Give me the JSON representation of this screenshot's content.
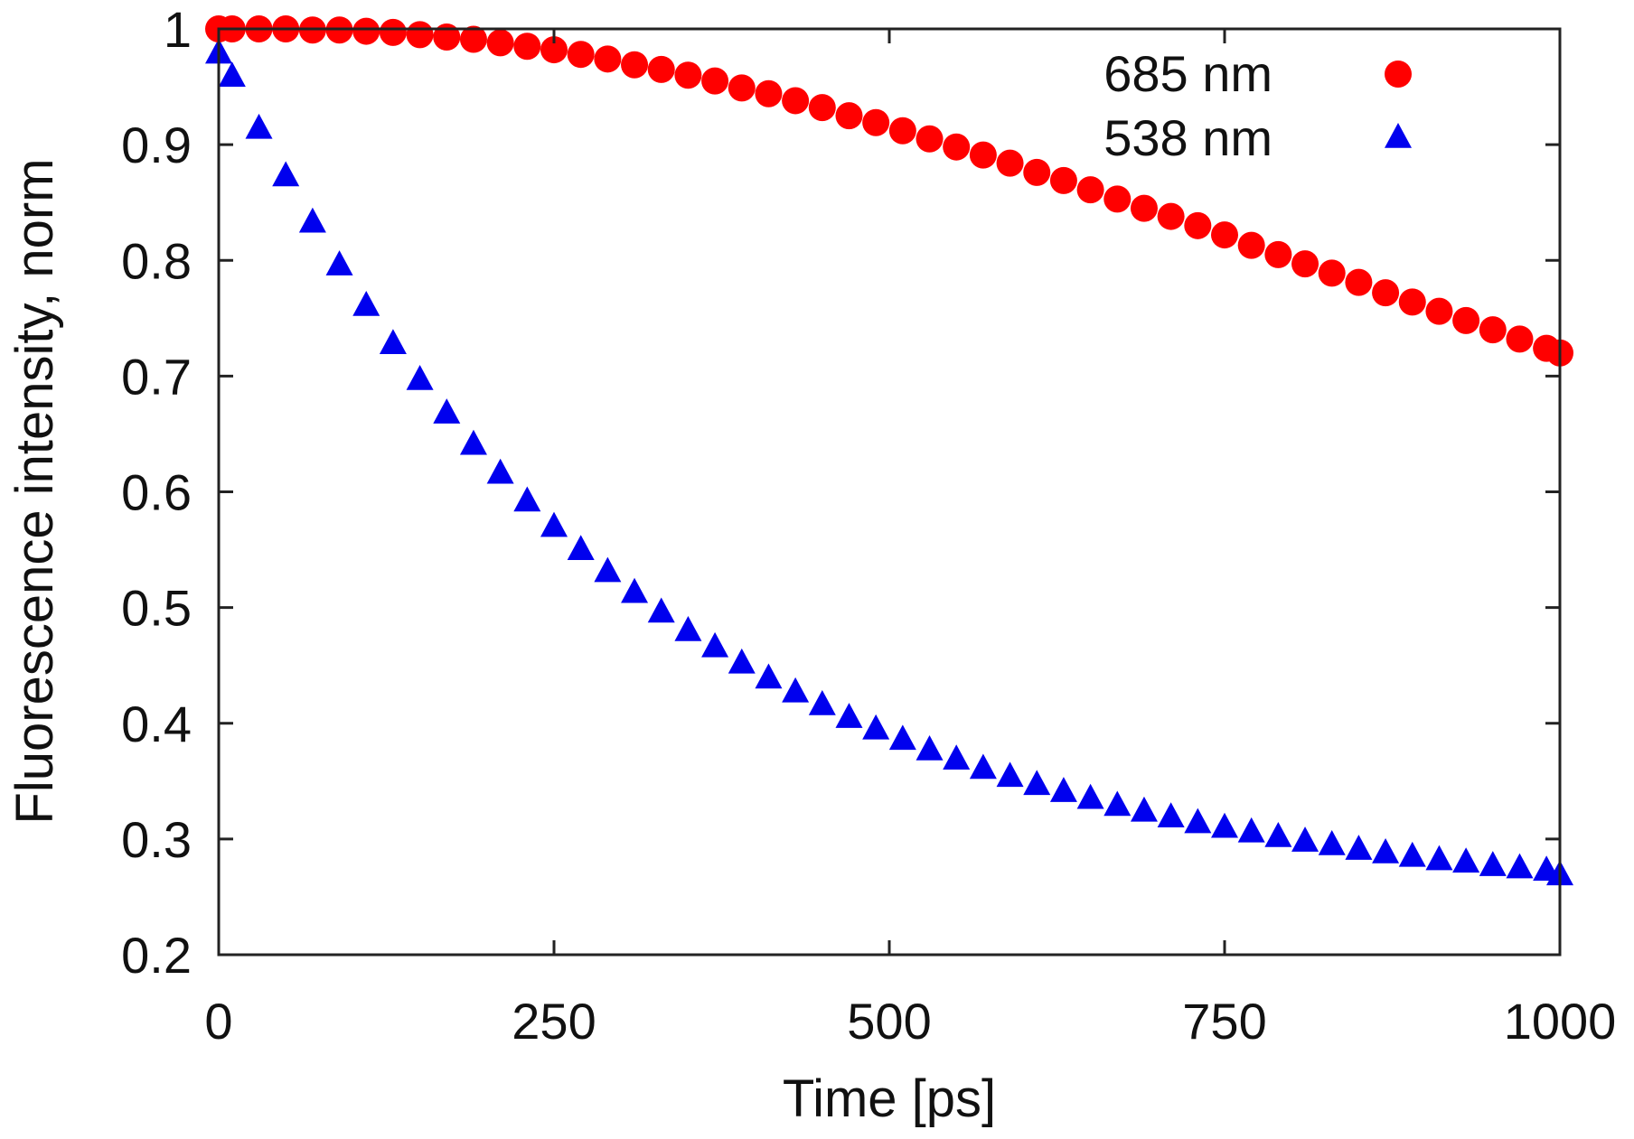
{
  "chart_data": {
    "type": "scatter",
    "title": "",
    "xlabel": "Time [ps]",
    "ylabel": "Fluorescence intensity, norm",
    "xlim": [
      0,
      1000
    ],
    "ylim": [
      0.2,
      1
    ],
    "xticks": [
      0,
      250,
      500,
      750,
      1000
    ],
    "xtick_labels": [
      "0",
      "250",
      "500",
      "750",
      "1000"
    ],
    "yticks": [
      0.2,
      0.3,
      0.4,
      0.5,
      0.6,
      0.7,
      0.8,
      0.9,
      1
    ],
    "ytick_labels": [
      "0.2",
      "0.3",
      "0.4",
      "0.5",
      "0.6",
      "0.7",
      "0.8",
      "0.9",
      "1"
    ],
    "grid": false,
    "legend_position": "top-right",
    "series": [
      {
        "name": "685 nm",
        "marker": "circle",
        "color": "#ff0000",
        "x": [
          0,
          10,
          30,
          50,
          70,
          90,
          110,
          130,
          150,
          170,
          190,
          210,
          230,
          250,
          270,
          290,
          310,
          330,
          350,
          370,
          390,
          410,
          430,
          450,
          470,
          490,
          510,
          530,
          550,
          570,
          590,
          610,
          630,
          650,
          670,
          690,
          710,
          730,
          750,
          770,
          790,
          810,
          830,
          850,
          870,
          890,
          910,
          930,
          950,
          970,
          990,
          1000
        ],
        "y": [
          1.0,
          1.0,
          1.0,
          1.0,
          0.999,
          0.999,
          0.998,
          0.997,
          0.995,
          0.993,
          0.991,
          0.988,
          0.985,
          0.982,
          0.978,
          0.974,
          0.969,
          0.965,
          0.96,
          0.955,
          0.949,
          0.944,
          0.938,
          0.932,
          0.925,
          0.919,
          0.912,
          0.905,
          0.898,
          0.891,
          0.884,
          0.876,
          0.869,
          0.861,
          0.853,
          0.845,
          0.838,
          0.83,
          0.822,
          0.813,
          0.805,
          0.797,
          0.789,
          0.781,
          0.772,
          0.764,
          0.756,
          0.748,
          0.74,
          0.732,
          0.724,
          0.72
        ]
      },
      {
        "name": "538 nm",
        "marker": "triangle",
        "color": "#0000ee",
        "x": [
          0,
          10,
          30,
          50,
          70,
          90,
          110,
          130,
          150,
          170,
          190,
          210,
          230,
          250,
          270,
          290,
          310,
          330,
          350,
          370,
          390,
          410,
          430,
          450,
          470,
          490,
          510,
          530,
          550,
          570,
          590,
          610,
          630,
          650,
          670,
          690,
          710,
          730,
          750,
          770,
          790,
          810,
          830,
          850,
          870,
          890,
          910,
          930,
          950,
          970,
          990,
          1000
        ],
        "y": [
          0.98,
          0.96,
          0.915,
          0.874,
          0.834,
          0.797,
          0.762,
          0.729,
          0.698,
          0.669,
          0.642,
          0.617,
          0.593,
          0.571,
          0.551,
          0.532,
          0.514,
          0.497,
          0.481,
          0.467,
          0.453,
          0.44,
          0.428,
          0.417,
          0.406,
          0.396,
          0.387,
          0.378,
          0.37,
          0.362,
          0.355,
          0.348,
          0.342,
          0.336,
          0.33,
          0.325,
          0.32,
          0.315,
          0.311,
          0.307,
          0.303,
          0.299,
          0.296,
          0.292,
          0.289,
          0.286,
          0.283,
          0.281,
          0.278,
          0.276,
          0.274,
          0.27
        ]
      }
    ]
  }
}
